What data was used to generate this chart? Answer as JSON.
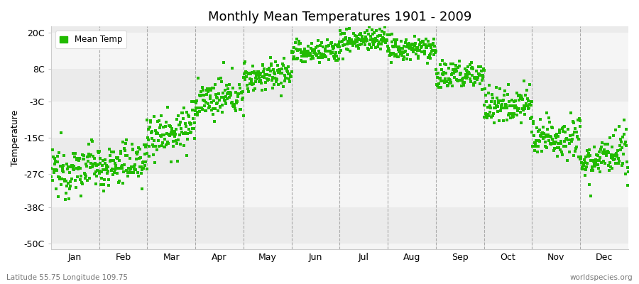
{
  "title": "Monthly Mean Temperatures 1901 - 2009",
  "ylabel": "Temperature",
  "yticks": [
    -50,
    -38,
    -27,
    -15,
    -3,
    8,
    20
  ],
  "ytick_labels": [
    "-50C",
    "-38C",
    "-27C",
    "-15C",
    "-3C",
    "8C",
    "20C"
  ],
  "ylim": [
    -52,
    22
  ],
  "months": [
    "Jan",
    "Feb",
    "Mar",
    "Apr",
    "May",
    "Jun",
    "Jul",
    "Aug",
    "Sep",
    "Oct",
    "Nov",
    "Dec"
  ],
  "monthly_means": [
    -27,
    -25,
    -14,
    -3,
    5,
    13,
    17,
    14,
    5,
    -5,
    -16,
    -23
  ],
  "monthly_stds": [
    4,
    3.5,
    4,
    3,
    2.5,
    2,
    2,
    2,
    2.5,
    3,
    3.5,
    3.5
  ],
  "monthly_trends": [
    0.03,
    0.025,
    0.025,
    0.02,
    0.015,
    0.01,
    0.01,
    0.01,
    0.015,
    0.02,
    0.025,
    0.025
  ],
  "n_years": 109,
  "dot_color": "#22bb00",
  "dot_size": 5,
  "band_colors": [
    "#f5f5f5",
    "#ebebeb"
  ],
  "footer_left": "Latitude 55.75 Longitude 109.75",
  "footer_right": "worldspecies.org",
  "legend_label": "Mean Temp",
  "vline_color": "#aaaaaa",
  "spine_color": "#cccccc"
}
